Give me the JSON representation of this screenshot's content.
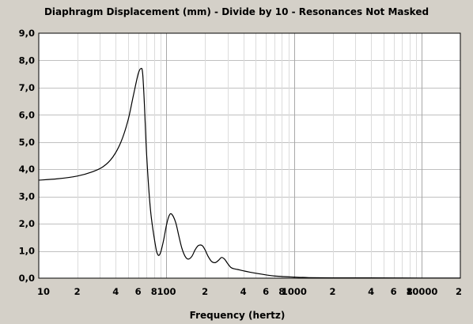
{
  "chart_data": {
    "type": "line",
    "title": "Diaphragm Displacement (mm) - Divide by 10 - Resonances Not Masked",
    "xlabel": "Frequency (hertz)",
    "ylabel": "",
    "xscale": "log",
    "xlim": [
      10,
      20000
    ],
    "ylim": [
      0,
      9
    ],
    "grid": true,
    "y_ticks": [
      "0,0",
      "1,0",
      "2,0",
      "3,0",
      "4,0",
      "5,0",
      "6,0",
      "7,0",
      "8,0",
      "9,0"
    ],
    "x_ticks": [
      {
        "value": 10,
        "label": "10"
      },
      {
        "value": 20,
        "label": "2"
      },
      {
        "value": 40,
        "label": "4"
      },
      {
        "value": 60,
        "label": "6"
      },
      {
        "value": 80,
        "label": "8"
      },
      {
        "value": 100,
        "label": "100"
      },
      {
        "value": 200,
        "label": "2"
      },
      {
        "value": 400,
        "label": "4"
      },
      {
        "value": 600,
        "label": "6"
      },
      {
        "value": 800,
        "label": "8"
      },
      {
        "value": 1000,
        "label": "1000"
      },
      {
        "value": 2000,
        "label": "2"
      },
      {
        "value": 4000,
        "label": "4"
      },
      {
        "value": 6000,
        "label": "6"
      },
      {
        "value": 8000,
        "label": "8"
      },
      {
        "value": 10000,
        "label": "10000"
      },
      {
        "value": 20000,
        "label": "2"
      }
    ],
    "series": [
      {
        "color": "#000000",
        "x": [
          10,
          14,
          20,
          26,
          32,
          38,
          44,
          50,
          55,
          60,
          63,
          65,
          67,
          70,
          75,
          82,
          86,
          90,
          95,
          100,
          105,
          110,
          118,
          125,
          132,
          140,
          148,
          158,
          168,
          178,
          190,
          200,
          212,
          225,
          240,
          255,
          270,
          285,
          300,
          318,
          335,
          360,
          400,
          450,
          550,
          700,
          1000,
          1300,
          2000,
          4000,
          10000,
          20000
        ],
        "y": [
          3.6,
          3.65,
          3.75,
          3.9,
          4.1,
          4.45,
          5.0,
          5.8,
          6.7,
          7.5,
          7.7,
          7.55,
          6.5,
          4.5,
          2.5,
          1.2,
          0.85,
          0.95,
          1.4,
          1.95,
          2.3,
          2.35,
          2.05,
          1.55,
          1.1,
          0.8,
          0.7,
          0.8,
          1.05,
          1.2,
          1.2,
          1.05,
          0.8,
          0.62,
          0.57,
          0.65,
          0.76,
          0.7,
          0.55,
          0.4,
          0.35,
          0.32,
          0.27,
          0.22,
          0.15,
          0.08,
          0.04,
          0.02,
          0.01,
          0.01,
          0.005,
          0.005
        ]
      }
    ]
  }
}
